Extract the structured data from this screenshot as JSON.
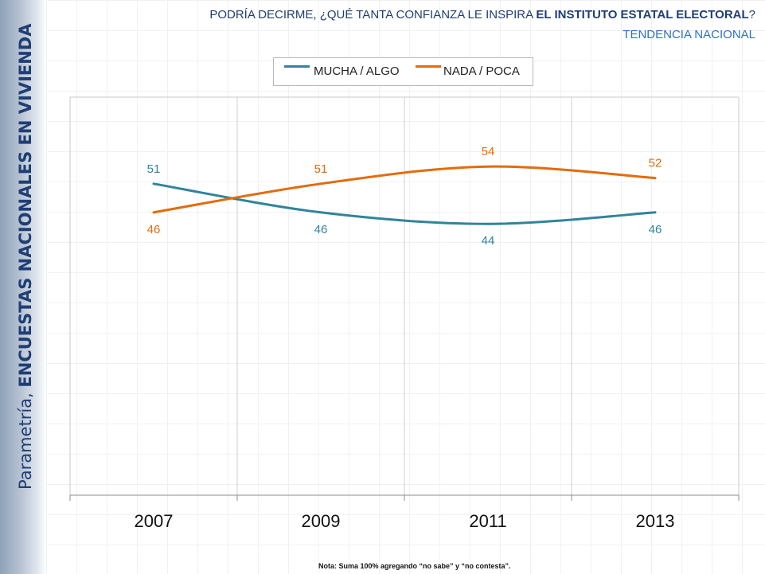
{
  "side_title": {
    "brand": "Parametría, ",
    "tagline": "ENCUESTAS NACIONALES EN VIVIENDA"
  },
  "header": {
    "question_prefix": "PODRÍA DECIRME, ¿QUÉ TANTA CONFIANZA LE INSPIRA ",
    "question_bold": "EL INSTITUTO ESTATAL ELECTORAL",
    "question_suffix": "?",
    "subtitle": "TENDENCIA NACIONAL"
  },
  "note": "Nota: Suma 100% agregando “no sabe” y “no contesta”.",
  "colors": {
    "mucha": "#31849b",
    "nada": "#e36c0a",
    "title": "#1f3e74",
    "subtitle": "#2e6fd0"
  },
  "chart_data": {
    "type": "line",
    "categories": [
      "2007",
      "2009",
      "2011",
      "2013"
    ],
    "series": [
      {
        "name": "MUCHA / ALGO",
        "values": [
          51,
          46,
          44,
          46
        ]
      },
      {
        "name": "NADA / POCA",
        "values": [
          46,
          51,
          54,
          52
        ]
      }
    ],
    "legend": "top-center",
    "grid": true
  }
}
